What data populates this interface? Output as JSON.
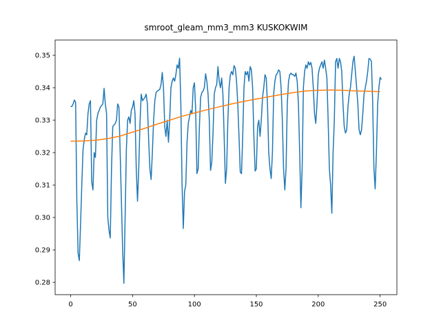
{
  "chart_data": {
    "type": "line",
    "title": "smroot_gleam_mm3_mm3 KUSKOKWIM",
    "xlim": [
      -12.55,
      263.55
    ],
    "xticks": [
      0,
      50,
      100,
      150,
      200,
      250
    ],
    "ylim": [
      0.2762,
      0.3547
    ],
    "yticks": [
      0.28,
      0.29,
      {
        "value": 0.3,
        "label": "0.30"
      },
      0.31,
      0.32,
      0.33,
      0.34,
      0.35
    ],
    "grid": false,
    "series": [
      {
        "color": "#1f77b4",
        "x": [
          0,
          1,
          2,
          3,
          4,
          5,
          6,
          7,
          8,
          9,
          10,
          11,
          12,
          13,
          14,
          15,
          16,
          17,
          18,
          19,
          20,
          21,
          22,
          23,
          24,
          25,
          26,
          27,
          28,
          29,
          30,
          31,
          32,
          33,
          34,
          35,
          36,
          37,
          38,
          39,
          40,
          41,
          42,
          43,
          44,
          45,
          46,
          47,
          48,
          49,
          50,
          51,
          52,
          53,
          54,
          55,
          56,
          57,
          58,
          59,
          60,
          61,
          62,
          63,
          64,
          65,
          66,
          67,
          68,
          69,
          70,
          71,
          72,
          73,
          74,
          75,
          76,
          77,
          78,
          79,
          80,
          81,
          82,
          83,
          84,
          85,
          86,
          87,
          88,
          89,
          90,
          91,
          92,
          93,
          94,
          95,
          96,
          97,
          98,
          99,
          100,
          101,
          102,
          103,
          104,
          105,
          106,
          107,
          108,
          109,
          110,
          111,
          112,
          113,
          114,
          115,
          116,
          117,
          118,
          119,
          120,
          121,
          122,
          123,
          124,
          125,
          126,
          127,
          128,
          129,
          130,
          131,
          132,
          133,
          134,
          135,
          136,
          137,
          138,
          139,
          140,
          141,
          142,
          143,
          144,
          145,
          146,
          147,
          148,
          149,
          150,
          151,
          152,
          153,
          154,
          155,
          156,
          157,
          158,
          159,
          160,
          161,
          162,
          163,
          164,
          165,
          166,
          167,
          168,
          169,
          170,
          171,
          172,
          173,
          174,
          175,
          176,
          177,
          178,
          179,
          180,
          181,
          182,
          183,
          184,
          185,
          186,
          187,
          188,
          189,
          190,
          191,
          192,
          193,
          194,
          195,
          196,
          197,
          198,
          199,
          200,
          201,
          202,
          203,
          204,
          205,
          206,
          207,
          208,
          209,
          210,
          211,
          212,
          213,
          214,
          215,
          216,
          217,
          218,
          219,
          220,
          221,
          222,
          223,
          224,
          225,
          226,
          227,
          228,
          229,
          230,
          231,
          232,
          233,
          234,
          235,
          236,
          237,
          238,
          239,
          240,
          241,
          242,
          243,
          244,
          245,
          246,
          247,
          248,
          249,
          250,
          251
        ],
        "values": [
          0.3342,
          0.3342,
          0.335,
          0.3362,
          0.3355,
          0.305,
          0.289,
          0.2867,
          0.298,
          0.31,
          0.321,
          0.324,
          0.326,
          0.3255,
          0.332,
          0.335,
          0.336,
          0.311,
          0.3085,
          0.32,
          0.3185,
          0.33,
          0.332,
          0.333,
          0.334,
          0.3345,
          0.335,
          0.3398,
          0.335,
          0.332,
          0.3,
          0.296,
          0.2937,
          0.315,
          0.328,
          0.3285,
          0.329,
          0.33,
          0.335,
          0.334,
          0.32,
          0.305,
          0.29,
          0.2797,
          0.3,
          0.321,
          0.33,
          0.331,
          0.329,
          0.333,
          0.334,
          0.336,
          0.332,
          0.315,
          0.305,
          0.315,
          0.329,
          0.338,
          0.336,
          0.3365,
          0.337,
          0.338,
          0.335,
          0.324,
          0.315,
          0.3117,
          0.32,
          0.33,
          0.336,
          0.3385,
          0.339,
          0.3392,
          0.3395,
          0.341,
          0.3447,
          0.34,
          0.328,
          0.325,
          0.33,
          0.3232,
          0.33,
          0.34,
          0.342,
          0.343,
          0.342,
          0.344,
          0.347,
          0.346,
          0.3491,
          0.335,
          0.31,
          0.2966,
          0.308,
          0.31,
          0.323,
          0.329,
          0.331,
          0.333,
          0.332,
          0.34,
          0.3415,
          0.333,
          0.3135,
          0.315,
          0.328,
          0.337,
          0.3385,
          0.339,
          0.34,
          0.3443,
          0.342,
          0.338,
          0.33,
          0.3145,
          0.317,
          0.326,
          0.338,
          0.34,
          0.341,
          0.3465,
          0.342,
          0.34,
          0.343,
          0.338,
          0.325,
          0.3105,
          0.315,
          0.33,
          0.34,
          0.344,
          0.345,
          0.344,
          0.3468,
          0.346,
          0.342,
          0.335,
          0.325,
          0.314,
          0.3135,
          0.325,
          0.34,
          0.345,
          0.344,
          0.345,
          0.342,
          0.3465,
          0.3455,
          0.34,
          0.325,
          0.3143,
          0.315,
          0.328,
          0.33,
          0.325,
          0.33,
          0.337,
          0.34,
          0.344,
          0.343,
          0.335,
          0.32,
          0.315,
          0.312,
          0.32,
          0.338,
          0.342,
          0.344,
          0.3445,
          0.3455,
          0.345,
          0.34,
          0.33,
          0.315,
          0.3085,
          0.315,
          0.335,
          0.342,
          0.344,
          0.3445,
          0.344,
          0.344,
          0.3435,
          0.3445,
          0.342,
          0.335,
          0.32,
          0.303,
          0.315,
          0.34,
          0.345,
          0.347,
          0.346,
          0.348,
          0.347,
          0.3478,
          0.346,
          0.34,
          0.332,
          0.329,
          0.335,
          0.344,
          0.346,
          0.347,
          0.348,
          0.346,
          0.3485,
          0.346,
          0.343,
          0.33,
          0.315,
          0.31,
          0.3013,
          0.32,
          0.33,
          0.348,
          0.349,
          0.346,
          0.349,
          0.348,
          0.345,
          0.335,
          0.328,
          0.326,
          0.327,
          0.334,
          0.338,
          0.34,
          0.344,
          0.348,
          0.3497,
          0.345,
          0.34,
          0.335,
          0.327,
          0.3255,
          0.327,
          0.332,
          0.338,
          0.34,
          0.342,
          0.345,
          0.349,
          0.3488,
          0.348,
          0.335,
          0.315,
          0.3088,
          0.32,
          0.335,
          0.34,
          0.3432,
          0.3425
        ]
      },
      {
        "color": "#ff7f0e",
        "x": [
          0,
          10,
          20,
          30,
          40,
          50,
          60,
          70,
          80,
          90,
          100,
          110,
          120,
          130,
          140,
          150,
          160,
          170,
          180,
          190,
          200,
          210,
          220,
          230,
          240,
          250
        ],
        "values": [
          0.3235,
          0.3236,
          0.3238,
          0.3243,
          0.3251,
          0.3263,
          0.3275,
          0.3288,
          0.33,
          0.3312,
          0.3322,
          0.3332,
          0.3341,
          0.335,
          0.3358,
          0.3365,
          0.3372,
          0.3379,
          0.3385,
          0.339,
          0.3392,
          0.3393,
          0.3392,
          0.339,
          0.3389,
          0.3388
        ]
      }
    ]
  }
}
